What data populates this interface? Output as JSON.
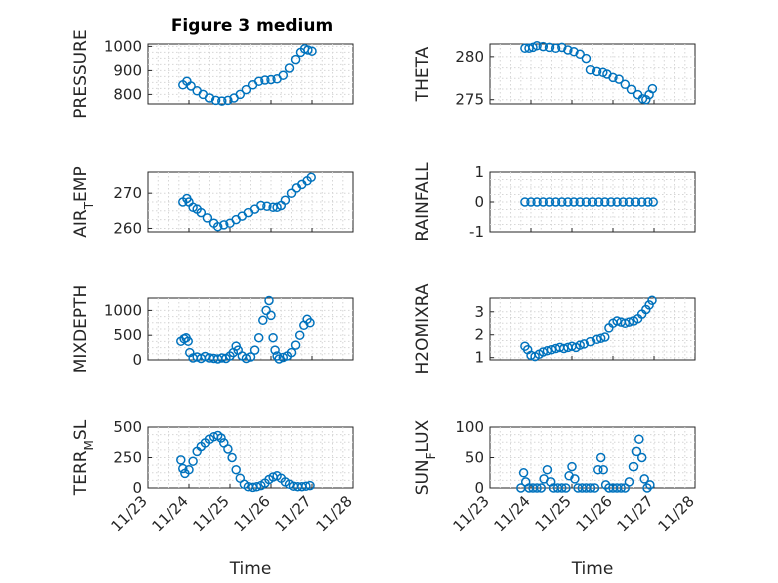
{
  "figure": {
    "title": "Figure 3 medium",
    "xlabel": "Time",
    "x_ticks": [
      "11/23",
      "11/24",
      "11/25",
      "11/26",
      "11/27",
      "11/28"
    ],
    "x_range_days": [
      0,
      5
    ],
    "marker_color": "#0072BD"
  },
  "chart_data": [
    {
      "type": "scatter",
      "id": "pressure",
      "ylabel": "PRESSURE",
      "ylim": [
        760,
        1010
      ],
      "yticks": [
        800,
        900,
        1000
      ],
      "points": [
        [
          0.85,
          840
        ],
        [
          0.95,
          855
        ],
        [
          1.05,
          835
        ],
        [
          1.2,
          815
        ],
        [
          1.35,
          800
        ],
        [
          1.5,
          785
        ],
        [
          1.65,
          775
        ],
        [
          1.8,
          772
        ],
        [
          1.95,
          775
        ],
        [
          2.1,
          785
        ],
        [
          2.25,
          800
        ],
        [
          2.4,
          820
        ],
        [
          2.55,
          840
        ],
        [
          2.7,
          855
        ],
        [
          2.85,
          860
        ],
        [
          3.0,
          862
        ],
        [
          3.15,
          865
        ],
        [
          3.3,
          880
        ],
        [
          3.45,
          910
        ],
        [
          3.6,
          945
        ],
        [
          3.72,
          975
        ],
        [
          3.82,
          990
        ],
        [
          3.9,
          985
        ],
        [
          4.0,
          980
        ]
      ]
    },
    {
      "type": "scatter",
      "id": "theta",
      "ylabel": "THETA",
      "ylim": [
        274.5,
        281.5
      ],
      "yticks": [
        275,
        280
      ],
      "points": [
        [
          0.85,
          281
        ],
        [
          0.95,
          281
        ],
        [
          1.05,
          281.1
        ],
        [
          1.15,
          281.3
        ],
        [
          1.3,
          281.2
        ],
        [
          1.45,
          281.1
        ],
        [
          1.6,
          281
        ],
        [
          1.75,
          281.1
        ],
        [
          1.9,
          280.8
        ],
        [
          2.05,
          280.6
        ],
        [
          2.2,
          280.3
        ],
        [
          2.35,
          279.8
        ],
        [
          2.45,
          278.5
        ],
        [
          2.6,
          278.3
        ],
        [
          2.75,
          278.2
        ],
        [
          2.85,
          278
        ],
        [
          3.0,
          277.6
        ],
        [
          3.15,
          277.4
        ],
        [
          3.3,
          276.8
        ],
        [
          3.45,
          276.2
        ],
        [
          3.6,
          275.6
        ],
        [
          3.72,
          275.1
        ],
        [
          3.8,
          275
        ],
        [
          3.88,
          275.6
        ],
        [
          3.96,
          276.3
        ]
      ]
    },
    {
      "type": "scatter",
      "id": "air_temp",
      "ylabel": "AIR_TEMP",
      "ylim": [
        259,
        276
      ],
      "yticks": [
        260,
        270
      ],
      "points": [
        [
          0.85,
          267.5
        ],
        [
          0.95,
          268.5
        ],
        [
          1.0,
          267.5
        ],
        [
          1.1,
          266
        ],
        [
          1.2,
          265.5
        ],
        [
          1.3,
          264.5
        ],
        [
          1.45,
          263
        ],
        [
          1.6,
          261.5
        ],
        [
          1.7,
          260.5
        ],
        [
          1.85,
          261
        ],
        [
          2.0,
          261.5
        ],
        [
          2.15,
          262.5
        ],
        [
          2.3,
          263.5
        ],
        [
          2.45,
          264.5
        ],
        [
          2.6,
          265.5
        ],
        [
          2.75,
          266.5
        ],
        [
          2.9,
          266.3
        ],
        [
          3.05,
          266
        ],
        [
          3.15,
          266
        ],
        [
          3.25,
          266.5
        ],
        [
          3.35,
          268
        ],
        [
          3.5,
          270
        ],
        [
          3.62,
          271.5
        ],
        [
          3.75,
          272.5
        ],
        [
          3.88,
          273.5
        ],
        [
          3.98,
          274.5
        ]
      ]
    },
    {
      "type": "scatter",
      "id": "rainfall",
      "ylabel": "RAINFALL",
      "ylim": [
        -1,
        1
      ],
      "yticks": [
        -1,
        0,
        1
      ],
      "points": [
        [
          0.85,
          0
        ],
        [
          1.0,
          0
        ],
        [
          1.15,
          0
        ],
        [
          1.3,
          0
        ],
        [
          1.45,
          0
        ],
        [
          1.6,
          0
        ],
        [
          1.75,
          0
        ],
        [
          1.9,
          0
        ],
        [
          2.05,
          0
        ],
        [
          2.2,
          0
        ],
        [
          2.35,
          0
        ],
        [
          2.5,
          0
        ],
        [
          2.65,
          0
        ],
        [
          2.8,
          0
        ],
        [
          2.95,
          0
        ],
        [
          3.1,
          0
        ],
        [
          3.25,
          0
        ],
        [
          3.4,
          0
        ],
        [
          3.55,
          0
        ],
        [
          3.7,
          0
        ],
        [
          3.85,
          0
        ],
        [
          3.98,
          0
        ]
      ]
    },
    {
      "type": "scatter",
      "id": "mixdepth",
      "ylabel": "MIXDEPTH",
      "ylim": [
        0,
        1250
      ],
      "yticks": [
        0,
        500,
        1000
      ],
      "points": [
        [
          0.8,
          380
        ],
        [
          0.88,
          430
        ],
        [
          0.93,
          450
        ],
        [
          0.98,
          380
        ],
        [
          1.02,
          150
        ],
        [
          1.1,
          40
        ],
        [
          1.2,
          60
        ],
        [
          1.3,
          30
        ],
        [
          1.4,
          70
        ],
        [
          1.5,
          40
        ],
        [
          1.6,
          30
        ],
        [
          1.7,
          20
        ],
        [
          1.8,
          40
        ],
        [
          1.9,
          30
        ],
        [
          2.0,
          80
        ],
        [
          2.08,
          150
        ],
        [
          2.15,
          280
        ],
        [
          2.2,
          200
        ],
        [
          2.3,
          80
        ],
        [
          2.4,
          30
        ],
        [
          2.5,
          60
        ],
        [
          2.6,
          200
        ],
        [
          2.7,
          450
        ],
        [
          2.8,
          800
        ],
        [
          2.88,
          1000
        ],
        [
          2.95,
          1200
        ],
        [
          3.0,
          900
        ],
        [
          3.05,
          450
        ],
        [
          3.1,
          200
        ],
        [
          3.15,
          80
        ],
        [
          3.2,
          20
        ],
        [
          3.3,
          50
        ],
        [
          3.4,
          80
        ],
        [
          3.5,
          150
        ],
        [
          3.6,
          300
        ],
        [
          3.7,
          500
        ],
        [
          3.8,
          700
        ],
        [
          3.88,
          820
        ],
        [
          3.95,
          750
        ]
      ]
    },
    {
      "type": "scatter",
      "id": "h2omixra",
      "ylabel": "H2OMIXRA",
      "ylim": [
        0.9,
        3.6
      ],
      "yticks": [
        1,
        2,
        3
      ],
      "points": [
        [
          0.85,
          1.5
        ],
        [
          0.92,
          1.35
        ],
        [
          1.0,
          1.1
        ],
        [
          1.1,
          1.05
        ],
        [
          1.2,
          1.15
        ],
        [
          1.3,
          1.25
        ],
        [
          1.4,
          1.3
        ],
        [
          1.5,
          1.35
        ],
        [
          1.6,
          1.4
        ],
        [
          1.7,
          1.45
        ],
        [
          1.8,
          1.4
        ],
        [
          1.9,
          1.45
        ],
        [
          2.0,
          1.5
        ],
        [
          2.1,
          1.45
        ],
        [
          2.2,
          1.55
        ],
        [
          2.3,
          1.6
        ],
        [
          2.45,
          1.7
        ],
        [
          2.6,
          1.8
        ],
        [
          2.7,
          1.85
        ],
        [
          2.8,
          1.9
        ],
        [
          2.9,
          2.3
        ],
        [
          3.0,
          2.5
        ],
        [
          3.1,
          2.6
        ],
        [
          3.2,
          2.55
        ],
        [
          3.3,
          2.5
        ],
        [
          3.4,
          2.55
        ],
        [
          3.5,
          2.6
        ],
        [
          3.6,
          2.7
        ],
        [
          3.7,
          2.9
        ],
        [
          3.8,
          3.1
        ],
        [
          3.88,
          3.3
        ],
        [
          3.95,
          3.5
        ]
      ]
    },
    {
      "type": "scatter",
      "id": "terr_msl",
      "ylabel": "TERR_MSL",
      "ylim": [
        0,
        500
      ],
      "yticks": [
        0,
        250,
        500
      ],
      "points": [
        [
          0.8,
          230
        ],
        [
          0.85,
          160
        ],
        [
          0.9,
          120
        ],
        [
          1.0,
          150
        ],
        [
          1.1,
          220
        ],
        [
          1.2,
          300
        ],
        [
          1.3,
          340
        ],
        [
          1.4,
          370
        ],
        [
          1.5,
          400
        ],
        [
          1.6,
          420
        ],
        [
          1.7,
          430
        ],
        [
          1.78,
          410
        ],
        [
          1.85,
          370
        ],
        [
          1.95,
          320
        ],
        [
          2.05,
          250
        ],
        [
          2.15,
          150
        ],
        [
          2.25,
          80
        ],
        [
          2.35,
          30
        ],
        [
          2.45,
          10
        ],
        [
          2.55,
          5
        ],
        [
          2.65,
          10
        ],
        [
          2.75,
          20
        ],
        [
          2.85,
          40
        ],
        [
          2.95,
          70
        ],
        [
          3.05,
          90
        ],
        [
          3.15,
          100
        ],
        [
          3.25,
          80
        ],
        [
          3.35,
          50
        ],
        [
          3.45,
          30
        ],
        [
          3.55,
          15
        ],
        [
          3.65,
          10
        ],
        [
          3.75,
          10
        ],
        [
          3.85,
          15
        ],
        [
          3.95,
          20
        ]
      ]
    },
    {
      "type": "scatter",
      "id": "sun_flux",
      "ylabel": "SUN_FLUX",
      "ylim": [
        0,
        100
      ],
      "yticks": [
        0,
        50,
        100
      ],
      "points": [
        [
          0.75,
          0
        ],
        [
          0.82,
          25
        ],
        [
          0.87,
          10
        ],
        [
          0.95,
          0
        ],
        [
          1.05,
          0
        ],
        [
          1.15,
          0
        ],
        [
          1.25,
          0
        ],
        [
          1.32,
          15
        ],
        [
          1.4,
          30
        ],
        [
          1.48,
          10
        ],
        [
          1.55,
          0
        ],
        [
          1.65,
          0
        ],
        [
          1.75,
          0
        ],
        [
          1.85,
          0
        ],
        [
          1.93,
          20
        ],
        [
          2.0,
          35
        ],
        [
          2.07,
          15
        ],
        [
          2.15,
          0
        ],
        [
          2.25,
          0
        ],
        [
          2.35,
          0
        ],
        [
          2.45,
          0
        ],
        [
          2.55,
          0
        ],
        [
          2.63,
          30
        ],
        [
          2.7,
          50
        ],
        [
          2.76,
          30
        ],
        [
          2.82,
          5
        ],
        [
          2.9,
          0
        ],
        [
          3.0,
          0
        ],
        [
          3.1,
          0
        ],
        [
          3.2,
          0
        ],
        [
          3.3,
          0
        ],
        [
          3.4,
          10
        ],
        [
          3.5,
          35
        ],
        [
          3.57,
          60
        ],
        [
          3.63,
          80
        ],
        [
          3.7,
          50
        ],
        [
          3.76,
          15
        ],
        [
          3.83,
          0
        ],
        [
          3.9,
          5
        ]
      ]
    }
  ]
}
